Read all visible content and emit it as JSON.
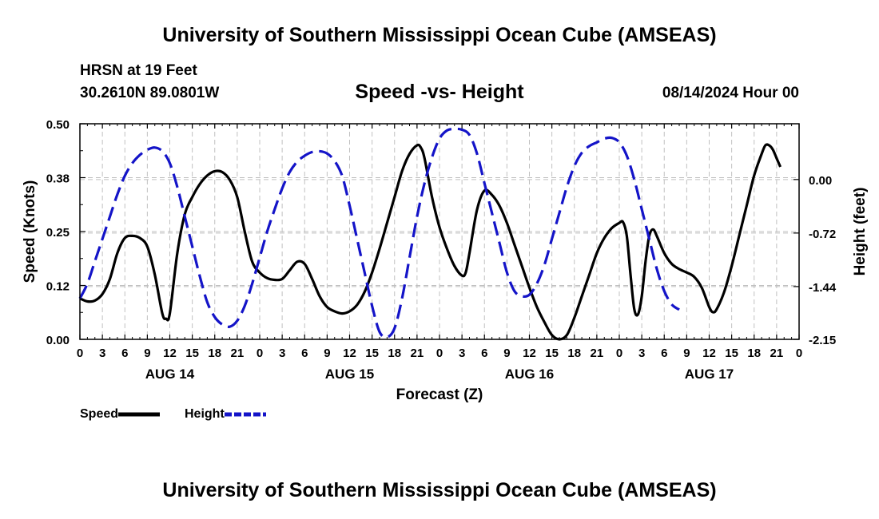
{
  "header": {
    "title": "University of Southern Mississippi Ocean Cube (AMSEAS)",
    "station": "HRSN at 19 Feet",
    "coordinates": "30.2610N  89.0801W",
    "subtitle": "Speed -vs- Height",
    "datetime": "08/14/2024 Hour 00",
    "footer_title": "University of Southern Mississippi Ocean Cube (AMSEAS)"
  },
  "chart_data": {
    "type": "line",
    "title": "Speed -vs- Height",
    "xlabel": "Forecast (Z)",
    "ylabel": "Speed (Knots)",
    "y2label": "Height (feet)",
    "xlim": [
      0,
      96
    ],
    "ylim": [
      0,
      0.5
    ],
    "y2lim": [
      -2.15,
      0.75
    ],
    "grid": true,
    "x_ticks": [
      0,
      3,
      6,
      9,
      12,
      15,
      18,
      21,
      24,
      27,
      30,
      33,
      36,
      39,
      42,
      45,
      48,
      51,
      54,
      57,
      60,
      63,
      66,
      69,
      72,
      75,
      78,
      81,
      84,
      87,
      90,
      93,
      96
    ],
    "x_tick_labels": [
      "0",
      "3",
      "6",
      "9",
      "12",
      "15",
      "18",
      "21",
      "0",
      "3",
      "6",
      "9",
      "12",
      "15",
      "18",
      "21",
      "0",
      "3",
      "6",
      "9",
      "12",
      "15",
      "18",
      "21",
      "0",
      "3",
      "6",
      "9",
      "12",
      "15",
      "18",
      "21",
      "0"
    ],
    "day_labels": [
      {
        "label": "AUG 14",
        "hour": 12
      },
      {
        "label": "AUG 15",
        "hour": 36
      },
      {
        "label": "AUG 16",
        "hour": 60
      },
      {
        "label": "AUG 17",
        "hour": 84
      }
    ],
    "y_ticks": [
      0.0,
      0.125,
      0.25,
      0.375,
      0.5
    ],
    "y_tick_labels": [
      "0.00",
      "0.12",
      "0.25",
      "0.38",
      "0.50"
    ],
    "y2_ticks": [
      0.0,
      -0.72,
      -1.44,
      -2.15
    ],
    "y2_tick_labels": [
      "0.00",
      "-0.72",
      "-1.44",
      "-2.15"
    ],
    "legend_position": "bottom-left",
    "series": [
      {
        "name": "Speed",
        "axis": "left",
        "color": "#000000",
        "style": "solid",
        "points": [
          [
            0,
            0.095
          ],
          [
            1,
            0.088
          ],
          [
            2,
            0.09
          ],
          [
            3,
            0.105
          ],
          [
            4,
            0.14
          ],
          [
            5,
            0.2
          ],
          [
            6,
            0.235
          ],
          [
            7,
            0.24
          ],
          [
            8,
            0.235
          ],
          [
            9,
            0.215
          ],
          [
            10,
            0.15
          ],
          [
            11,
            0.06
          ],
          [
            11.5,
            0.048
          ],
          [
            12,
            0.06
          ],
          [
            13,
            0.2
          ],
          [
            14,
            0.29
          ],
          [
            15,
            0.33
          ],
          [
            16,
            0.36
          ],
          [
            17,
            0.38
          ],
          [
            18,
            0.39
          ],
          [
            19,
            0.388
          ],
          [
            20,
            0.37
          ],
          [
            21,
            0.33
          ],
          [
            22,
            0.25
          ],
          [
            23,
            0.18
          ],
          [
            24,
            0.155
          ],
          [
            25,
            0.142
          ],
          [
            26,
            0.138
          ],
          [
            27,
            0.14
          ],
          [
            28,
            0.16
          ],
          [
            29,
            0.18
          ],
          [
            30,
            0.175
          ],
          [
            31,
            0.14
          ],
          [
            32,
            0.1
          ],
          [
            33,
            0.075
          ],
          [
            34,
            0.065
          ],
          [
            35,
            0.06
          ],
          [
            36,
            0.065
          ],
          [
            37,
            0.08
          ],
          [
            38,
            0.11
          ],
          [
            39,
            0.155
          ],
          [
            40,
            0.21
          ],
          [
            41,
            0.27
          ],
          [
            42,
            0.33
          ],
          [
            43,
            0.39
          ],
          [
            44,
            0.43
          ],
          [
            45,
            0.45
          ],
          [
            45.5,
            0.445
          ],
          [
            46,
            0.42
          ],
          [
            47,
            0.33
          ],
          [
            48,
            0.26
          ],
          [
            49,
            0.21
          ],
          [
            50,
            0.17
          ],
          [
            51,
            0.148
          ],
          [
            51.5,
            0.155
          ],
          [
            52,
            0.2
          ],
          [
            53,
            0.3
          ],
          [
            54,
            0.345
          ],
          [
            55,
            0.335
          ],
          [
            56,
            0.31
          ],
          [
            57,
            0.27
          ],
          [
            58,
            0.22
          ],
          [
            59,
            0.17
          ],
          [
            60,
            0.12
          ],
          [
            61,
            0.075
          ],
          [
            62,
            0.04
          ],
          [
            63,
            0.01
          ],
          [
            64,
            0.0
          ],
          [
            65,
            0.01
          ],
          [
            66,
            0.05
          ],
          [
            67,
            0.1
          ],
          [
            68,
            0.15
          ],
          [
            69,
            0.2
          ],
          [
            70,
            0.235
          ],
          [
            71,
            0.258
          ],
          [
            72,
            0.27
          ],
          [
            72.5,
            0.272
          ],
          [
            73,
            0.24
          ],
          [
            73.5,
            0.15
          ],
          [
            74,
            0.07
          ],
          [
            74.5,
            0.058
          ],
          [
            75,
            0.1
          ],
          [
            75.5,
            0.18
          ],
          [
            76,
            0.24
          ],
          [
            76.5,
            0.255
          ],
          [
            77,
            0.24
          ],
          [
            78,
            0.2
          ],
          [
            79,
            0.175
          ],
          [
            80,
            0.163
          ],
          [
            81,
            0.155
          ],
          [
            82,
            0.145
          ],
          [
            83,
            0.12
          ],
          [
            84,
            0.075
          ],
          [
            84.5,
            0.063
          ],
          [
            85,
            0.07
          ],
          [
            86,
            0.11
          ],
          [
            87,
            0.17
          ],
          [
            88,
            0.24
          ],
          [
            89,
            0.31
          ],
          [
            90,
            0.38
          ],
          [
            91,
            0.43
          ],
          [
            91.5,
            0.45
          ],
          [
            92,
            0.45
          ],
          [
            92.5,
            0.44
          ],
          [
            93,
            0.42
          ],
          [
            93.5,
            0.4
          ]
        ]
      },
      {
        "name": "Height",
        "axis": "right",
        "color": "#1414c8",
        "style": "dashed",
        "points": [
          [
            0,
            -1.6
          ],
          [
            1,
            -1.4
          ],
          [
            2,
            -1.1
          ],
          [
            3,
            -0.8
          ],
          [
            4,
            -0.5
          ],
          [
            5,
            -0.2
          ],
          [
            6,
            0.05
          ],
          [
            7,
            0.22
          ],
          [
            8,
            0.33
          ],
          [
            9,
            0.4
          ],
          [
            10,
            0.43
          ],
          [
            11,
            0.38
          ],
          [
            12,
            0.22
          ],
          [
            13,
            -0.1
          ],
          [
            14,
            -0.5
          ],
          [
            15,
            -0.9
          ],
          [
            16,
            -1.3
          ],
          [
            17,
            -1.65
          ],
          [
            18,
            -1.85
          ],
          [
            19,
            -1.95
          ],
          [
            20,
            -1.98
          ],
          [
            21,
            -1.9
          ],
          [
            22,
            -1.7
          ],
          [
            23,
            -1.4
          ],
          [
            24,
            -1.05
          ],
          [
            25,
            -0.7
          ],
          [
            26,
            -0.4
          ],
          [
            27,
            -0.12
          ],
          [
            28,
            0.1
          ],
          [
            29,
            0.24
          ],
          [
            30,
            0.32
          ],
          [
            31,
            0.37
          ],
          [
            32,
            0.38
          ],
          [
            33,
            0.35
          ],
          [
            34,
            0.25
          ],
          [
            35,
            0.05
          ],
          [
            36,
            -0.35
          ],
          [
            37,
            -0.8
          ],
          [
            38,
            -1.25
          ],
          [
            39,
            -1.7
          ],
          [
            40,
            -2.05
          ],
          [
            41,
            -2.12
          ],
          [
            42,
            -2.0
          ],
          [
            43,
            -1.6
          ],
          [
            44,
            -1.05
          ],
          [
            45,
            -0.5
          ],
          [
            46,
            -0.05
          ],
          [
            47,
            0.3
          ],
          [
            48,
            0.55
          ],
          [
            49,
            0.66
          ],
          [
            50,
            0.68
          ],
          [
            51,
            0.67
          ],
          [
            52,
            0.6
          ],
          [
            53,
            0.35
          ],
          [
            54,
            -0.05
          ],
          [
            55,
            -0.45
          ],
          [
            56,
            -0.85
          ],
          [
            57,
            -1.25
          ],
          [
            58,
            -1.5
          ],
          [
            59,
            -1.57
          ],
          [
            60,
            -1.55
          ],
          [
            61,
            -1.4
          ],
          [
            62,
            -1.15
          ],
          [
            63,
            -0.8
          ],
          [
            64,
            -0.45
          ],
          [
            65,
            -0.1
          ],
          [
            66,
            0.18
          ],
          [
            67,
            0.36
          ],
          [
            68,
            0.45
          ],
          [
            69,
            0.5
          ],
          [
            70,
            0.55
          ],
          [
            71,
            0.56
          ],
          [
            72,
            0.5
          ],
          [
            73,
            0.32
          ],
          [
            74,
            0.0
          ],
          [
            75,
            -0.4
          ],
          [
            76,
            -0.8
          ],
          [
            77,
            -1.2
          ],
          [
            78,
            -1.5
          ],
          [
            79,
            -1.68
          ],
          [
            80,
            -1.75
          ]
        ]
      }
    ]
  }
}
